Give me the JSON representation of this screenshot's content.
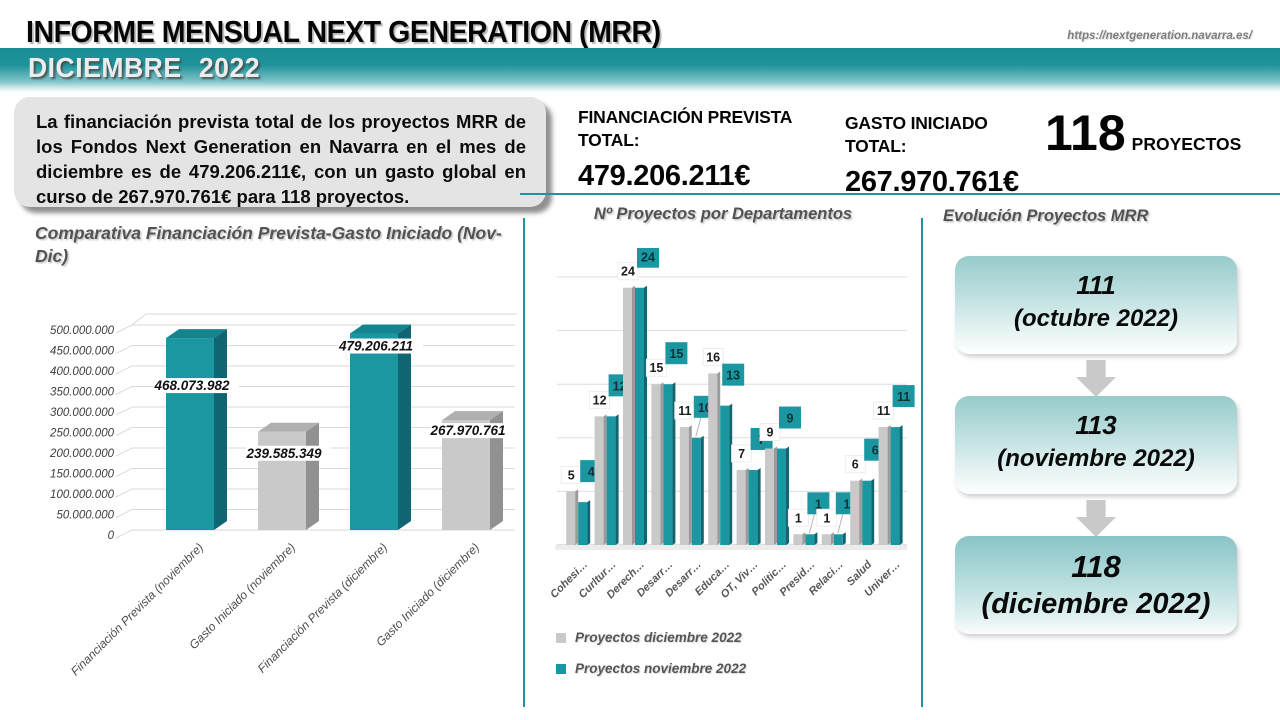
{
  "header": {
    "title": "INFORME MENSUAL NEXT GENERATION (MRR)",
    "url": "https://nextgeneration.navarra.es/",
    "subtitle": "DICIEMBRE 2022"
  },
  "summary": {
    "text": "La financiación prevista total de los proyectos MRR de los Fondos Next Generation en Navarra en el mes de diciembre es de 479.206.211€, con un gasto global en curso de 267.970.761€ para 118 proyectos."
  },
  "kpis": {
    "financiacion": {
      "label": "FINANCIACIÓN PREVISTA TOTAL:",
      "value": "479.206.211€"
    },
    "gasto": {
      "label": "GASTO INICIADO TOTAL:",
      "value": "267.970.761€"
    },
    "proyectos": {
      "value": "118",
      "label": "PROYECTOS"
    }
  },
  "chart_data": [
    {
      "type": "bar",
      "title": "Comparativa Financiación Prevista-Gasto Iniciado (Nov-Dic)",
      "categories": [
        "Financiación Prevista (noviembre)",
        "Gasto Iniciado (noviembre)",
        "Financiación Prevista (diciembre)",
        "Gasto Iniciado (diciembre)"
      ],
      "values": [
        468073982,
        239585349,
        479206211,
        267970761
      ],
      "value_labels": [
        "468.073.982",
        "239.585.349",
        "479.206.211",
        "267.970.761"
      ],
      "bar_colors": [
        "teal",
        "gray",
        "teal",
        "gray"
      ],
      "ylim": [
        0,
        500000000
      ],
      "ytick_step": 50000000,
      "ytick_labels": [
        "500.000.000",
        "450.000.000",
        "400.000.000",
        "350.000.000",
        "300.000.000",
        "250.000.000",
        "200.000.000",
        "150.000.000",
        "100.000.000",
        "50.000.000",
        "0"
      ],
      "grid": true,
      "style": "3d-bar",
      "legend_position": "none"
    },
    {
      "type": "bar",
      "title": "Nº Proyectos por Departamentos",
      "categories": [
        "Cohesi…",
        "Curltur…",
        "Derech…",
        "Desarr…",
        "Desarr…",
        "Educa…",
        "OT, Viv…",
        "Politic…",
        "Presid…",
        "Relaci…",
        "Salud",
        "Univer…"
      ],
      "series": [
        {
          "name": "Proyectos diciembre 2022",
          "color": "#c9c9c9",
          "values": [
            5,
            12,
            24,
            15,
            11,
            16,
            7,
            9,
            1,
            1,
            6,
            11
          ]
        },
        {
          "name": "Proyectos noviembre 2022",
          "color": "#1b97a1",
          "values": [
            4,
            12,
            24,
            15,
            10,
            13,
            7,
            9,
            1,
            1,
            6,
            11
          ]
        }
      ],
      "ylim": [
        0,
        25
      ],
      "gridline_step": 5,
      "grid": true,
      "legend_position": "bottom-left"
    }
  ],
  "evolution": {
    "title": "Evolución Proyectos MRR",
    "steps": [
      {
        "value": "111",
        "caption": "(octubre 2022)"
      },
      {
        "value": "113",
        "caption": "(noviembre 2022)"
      },
      {
        "value": "118",
        "caption": "(diciembre 2022)"
      }
    ]
  },
  "colors": {
    "teal": "#1b97a1",
    "teal_side": "#0f6570",
    "teal_top": "#14858f",
    "gray_bar": "#c9c9c9",
    "gray_side": "#919191",
    "gray_top": "#b0b0b0",
    "accent_line": "#1a96a0",
    "title_gray": "#525252"
  }
}
